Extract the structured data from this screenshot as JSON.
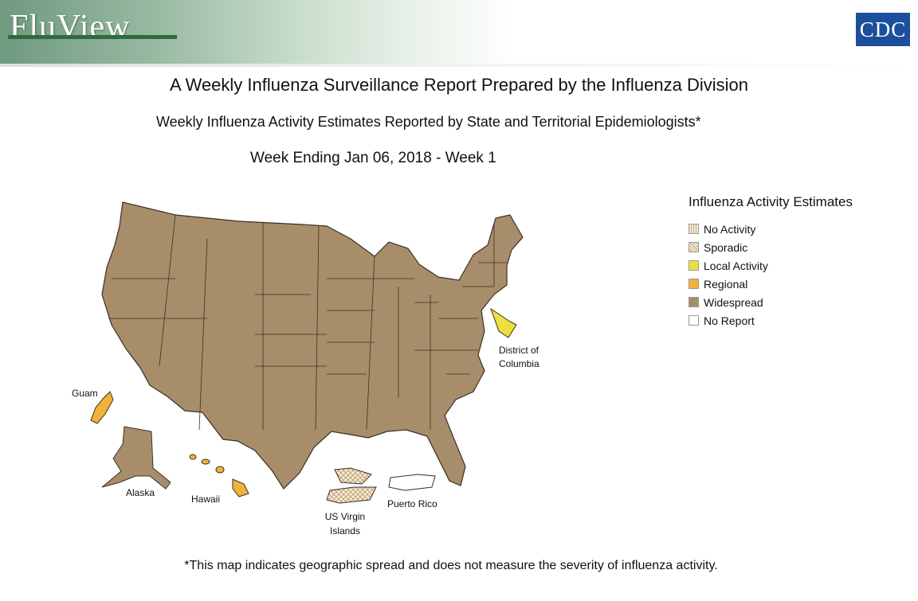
{
  "header": {
    "logo_text": "FluView",
    "agency_logo": "CDC"
  },
  "title": "A Weekly Influenza Surveillance Report Prepared by the Influenza Division",
  "subtitle": "Weekly Influenza Activity Estimates Reported by State and Territorial Epidemiologists*",
  "week": "Week Ending Jan 06, 2018 - Week 1",
  "legend": {
    "title": "Influenza Activity Estimates",
    "items": [
      {
        "label": "No Activity",
        "color": "#f6ead2",
        "pattern": "vertical-lines"
      },
      {
        "label": "Sporadic",
        "color": "#f6ead2",
        "pattern": "crosshatch"
      },
      {
        "label": "Local Activity",
        "color": "#ece03f"
      },
      {
        "label": "Regional",
        "color": "#f0b23a"
      },
      {
        "label": "Widespread",
        "color": "#a88d6b"
      },
      {
        "label": "No Report",
        "color": "#ffffff"
      }
    ]
  },
  "regions": {
    "contiguous_us": {
      "activity": "Widespread"
    },
    "district_of_columbia": {
      "label": "District of Columbia",
      "activity": "Local Activity"
    },
    "guam": {
      "label": "Guam",
      "activity": "Regional"
    },
    "alaska": {
      "label": "Alaska",
      "activity": "Widespread"
    },
    "hawaii": {
      "label": "Hawaii",
      "activity": "Regional"
    },
    "us_virgin_islands": {
      "label": "US Virgin Islands",
      "activity": "Sporadic"
    },
    "puerto_rico": {
      "label": "Puerto Rico",
      "activity": "No Report"
    }
  },
  "footnote": "*This map indicates geographic spread and does not measure the severity of influenza activity."
}
